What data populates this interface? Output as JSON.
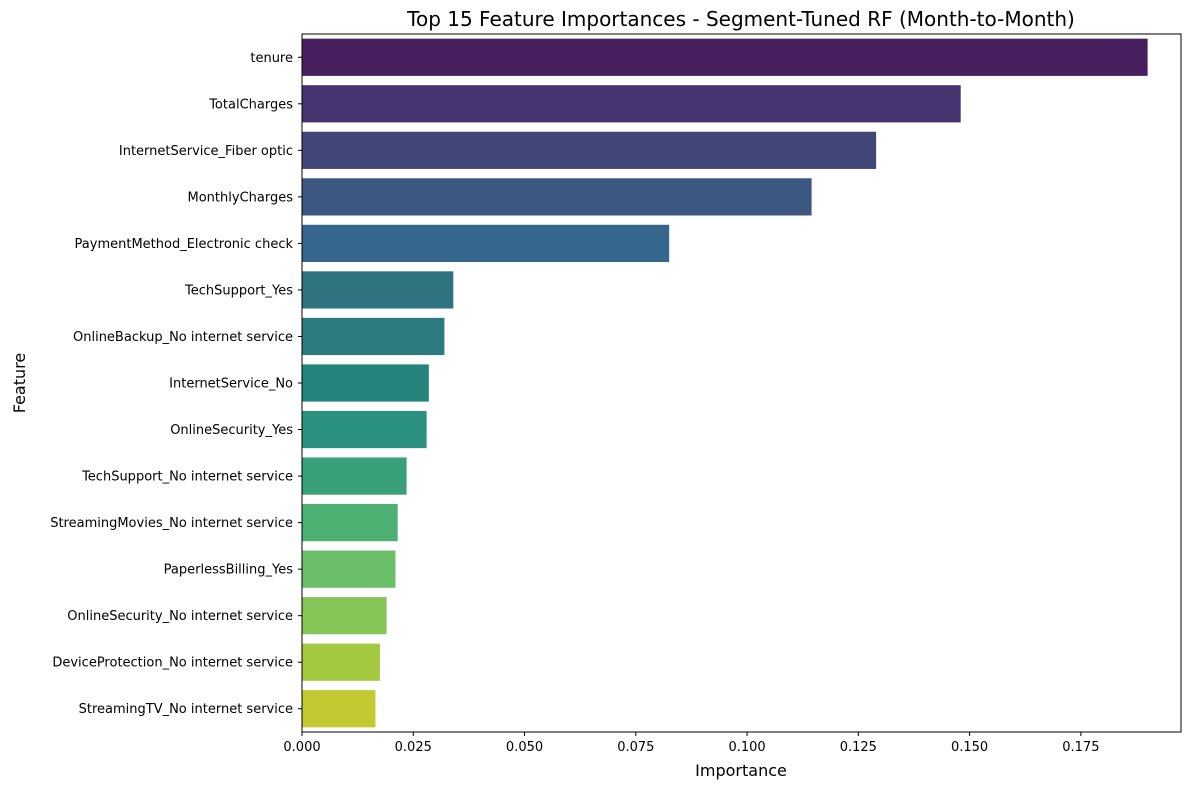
{
  "chart_data": {
    "type": "bar",
    "orientation": "horizontal",
    "title": "Top 15 Feature Importances - Segment-Tuned RF (Month-to-Month)",
    "xlabel": "Importance",
    "ylabel": "Feature",
    "xlim": [
      0,
      0.1975
    ],
    "xticks": [
      0.0,
      0.025,
      0.05,
      0.075,
      0.1,
      0.125,
      0.15,
      0.175
    ],
    "xtick_labels": [
      "0.000",
      "0.025",
      "0.050",
      "0.075",
      "0.100",
      "0.125",
      "0.150",
      "0.175"
    ],
    "grid": false,
    "categories": [
      "tenure",
      "TotalCharges",
      "InternetService_Fiber optic",
      "MonthlyCharges",
      "PaymentMethod_Electronic check",
      "TechSupport_Yes",
      "OnlineBackup_No internet service",
      "InternetService_No",
      "OnlineSecurity_Yes",
      "TechSupport_No internet service",
      "StreamingMovies_No internet service",
      "PaperlessBilling_Yes",
      "OnlineSecurity_No internet service",
      "DeviceProtection_No internet service",
      "StreamingTV_No internet service"
    ],
    "values": [
      0.19,
      0.148,
      0.129,
      0.1145,
      0.0825,
      0.034,
      0.032,
      0.0285,
      0.028,
      0.0235,
      0.0215,
      0.021,
      0.019,
      0.0175,
      0.0165
    ],
    "colors": [
      "#481f5f",
      "#46336f",
      "#424679",
      "#3d5783",
      "#35668c",
      "#2f7381",
      "#2c7b7f",
      "#25857d",
      "#2a917e",
      "#38a17a",
      "#4cb073",
      "#6bbe6a",
      "#86c557",
      "#a3c941",
      "#c2ca31"
    ]
  }
}
